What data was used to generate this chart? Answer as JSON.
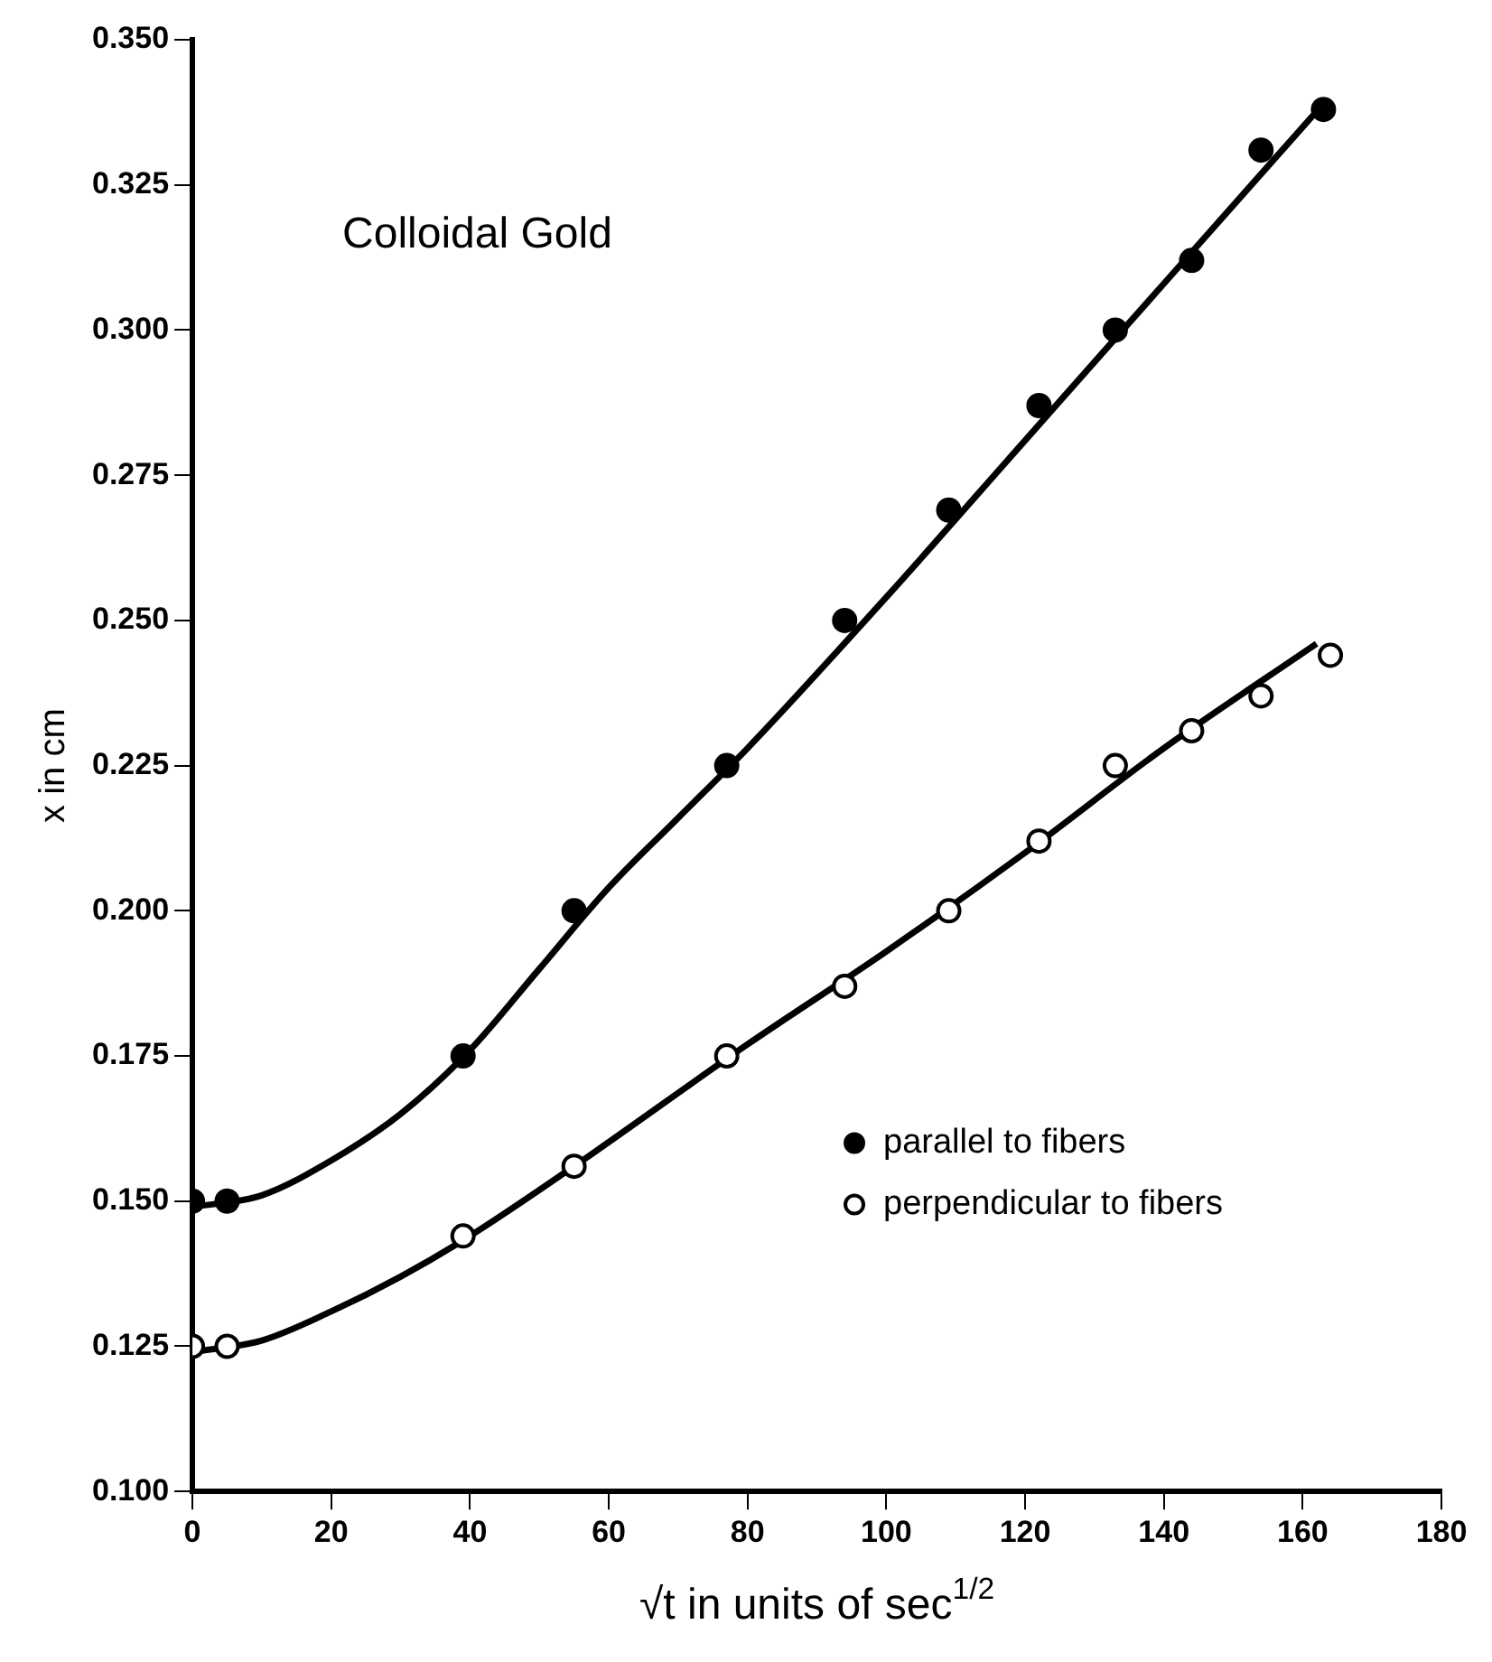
{
  "chart_data": {
    "type": "scatter",
    "title": "Colloidal Gold",
    "xlabel": "√t in units of sec$^{1/2}$",
    "ylabel": "x in cm",
    "xlim": [
      0,
      180
    ],
    "xticks": [
      0,
      20,
      40,
      60,
      80,
      100,
      120,
      140,
      160,
      180
    ],
    "ylim": [
      0.1,
      0.35
    ],
    "yticks": [
      {
        "value": 0.1,
        "label": "0.100"
      },
      {
        "value": 0.125,
        "label": "0.125"
      },
      {
        "value": 0.15,
        "label": "0.150"
      },
      {
        "value": 0.175,
        "label": "0.175"
      },
      {
        "value": 0.2,
        "label": "0.200"
      },
      {
        "value": 0.225,
        "label": "0.225"
      },
      {
        "value": 0.25,
        "label": "0.250"
      },
      {
        "value": 0.275,
        "label": "0.275"
      },
      {
        "value": 0.3,
        "label": "0.300"
      },
      {
        "value": 0.325,
        "label": "0.325"
      },
      {
        "value": 0.35,
        "label": "0.350"
      }
    ],
    "grid": false,
    "legend": "right",
    "series": [
      {
        "name": "parallel to fibers",
        "marker": "circle",
        "color": "#000000",
        "x": [
          0,
          5,
          39,
          55,
          77,
          94,
          109,
          122,
          133,
          144,
          154,
          163
        ],
        "values": [
          0.15,
          0.15,
          0.175,
          0.2,
          0.225,
          0.25,
          0.269,
          0.287,
          0.3,
          0.312,
          0.331,
          0.338
        ]
      },
      {
        "name": "perpendicular to fibers",
        "marker": "circle",
        "color": "#000000",
        "x": [
          0,
          5,
          39,
          55,
          77,
          94,
          109,
          122,
          133,
          144,
          154,
          164
        ],
        "values": [
          0.125,
          0.125,
          0.144,
          0.156,
          0.175,
          0.187,
          0.2,
          0.212,
          0.225,
          0.231,
          0.237,
          0.244
        ]
      },
      {
        "type": "line",
        "marker": "none",
        "color": "#000000",
        "x": [
          0,
          10,
          20,
          30,
          40,
          50,
          60,
          70,
          80,
          100,
          120,
          140,
          163
        ],
        "values": [
          0.149,
          0.151,
          0.157,
          0.165,
          0.176,
          0.19,
          0.204,
          0.216,
          0.228,
          0.254,
          0.281,
          0.308,
          0.339
        ]
      },
      {
        "type": "line",
        "marker": "none",
        "color": "#000000",
        "x": [
          0,
          10,
          20,
          30,
          40,
          55,
          80,
          100,
          120,
          140,
          162
        ],
        "values": [
          0.124,
          0.126,
          0.131,
          0.137,
          0.144,
          0.156,
          0.177,
          0.193,
          0.21,
          0.228,
          0.246
        ]
      }
    ]
  }
}
